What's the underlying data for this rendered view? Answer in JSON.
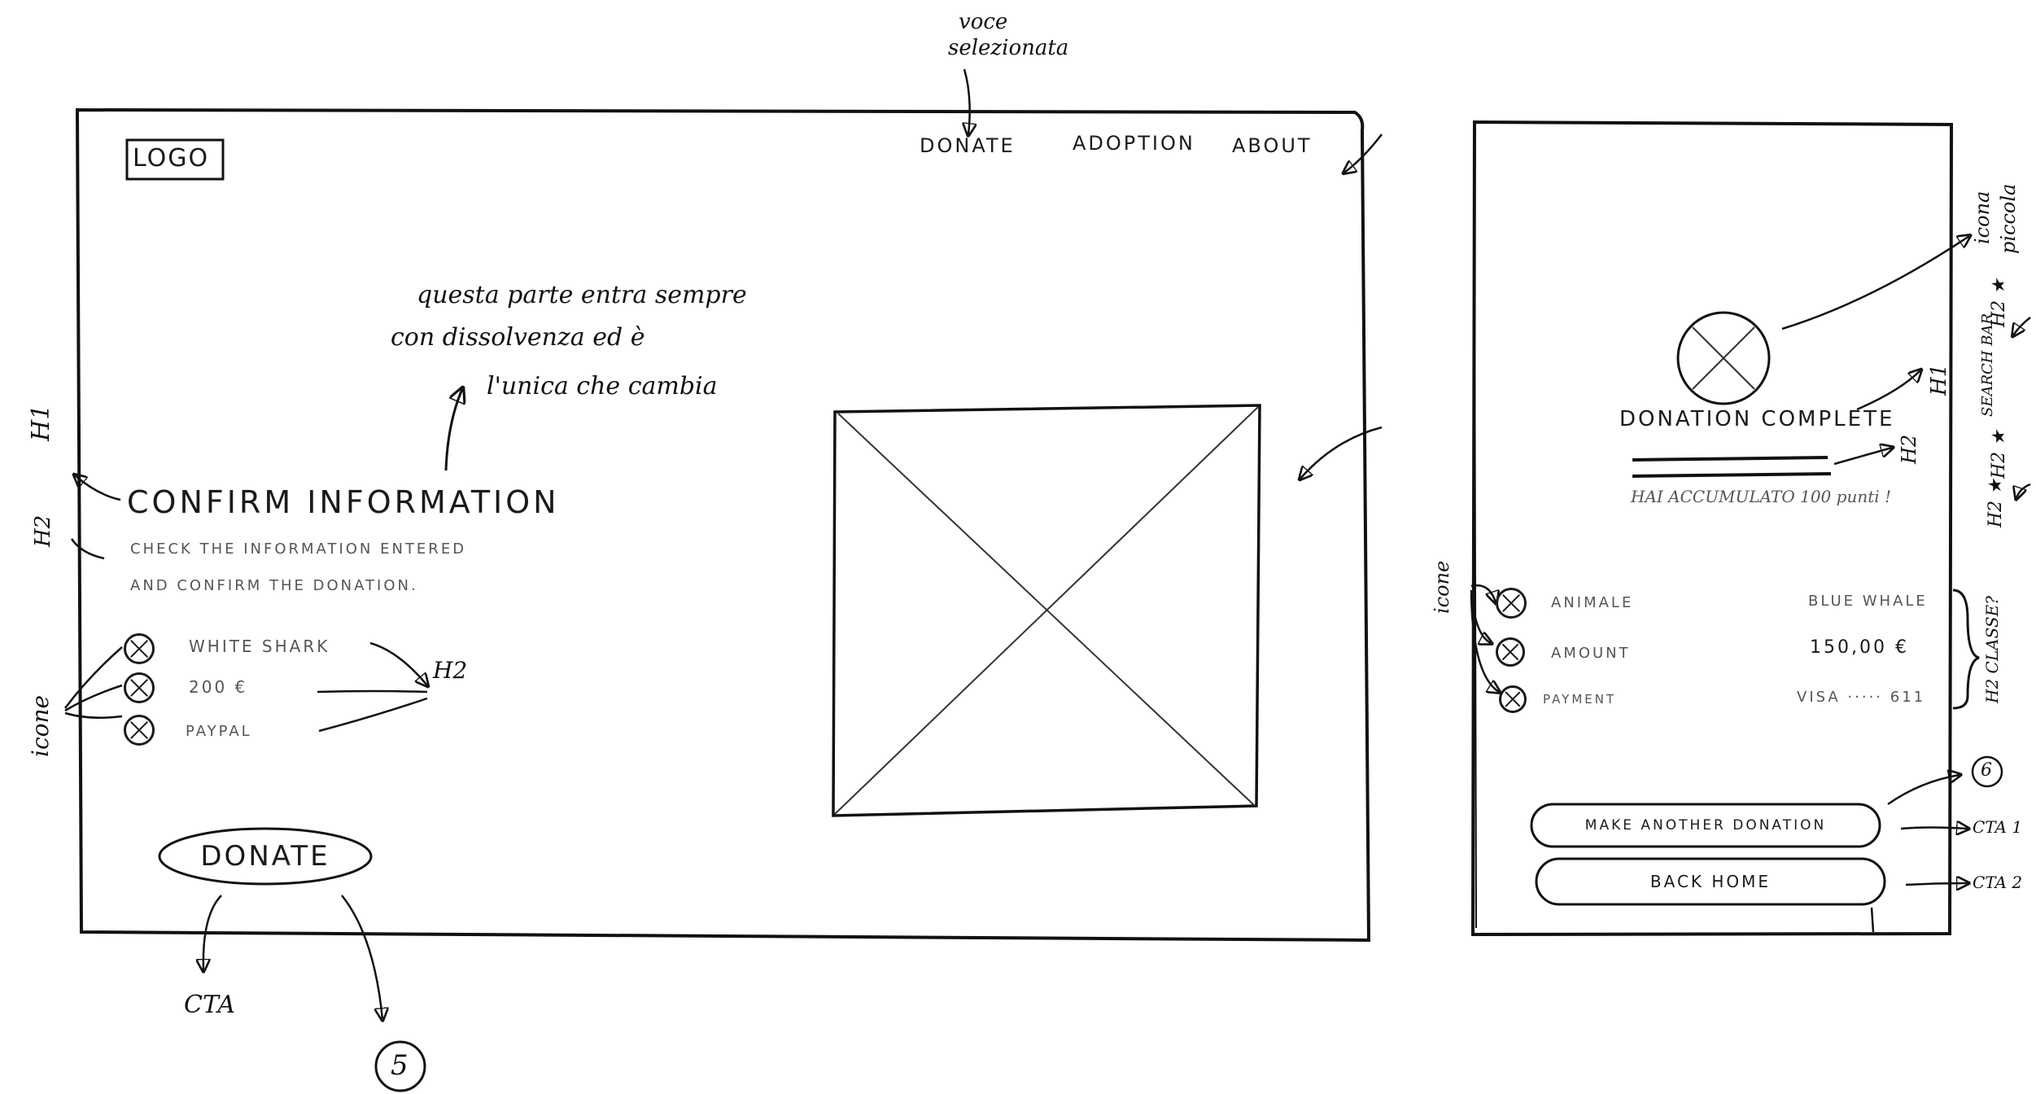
{
  "desktop": {
    "logo": "LOGO",
    "nav": [
      "DONATE",
      "ADOPTION",
      "ABOUT"
    ],
    "h1": "CONFIRM INFORMATION",
    "h2_line1": "CHECK THE INFORMATION ENTERED",
    "h2_line2": "AND CONFIRM THE DONATION.",
    "summary": [
      "WHITE SHARK",
      "200 €",
      "PAYPAL"
    ],
    "cta_label": "DONATE"
  },
  "mobile": {
    "title": "DONATION COMPLETE",
    "points_text": "HAI ACCUMULATO 100 punti !",
    "rows": [
      {
        "label": "ANIMALE",
        "value": "BLUE WHALE"
      },
      {
        "label": "AMOUNT",
        "value": "150,00 €"
      },
      {
        "label": "PAYMENT",
        "value": "VISA ····· 611"
      }
    ],
    "cta1_label": "MAKE ANOTHER DONATION",
    "cta2_label": "BACK HOME"
  },
  "annotations": {
    "voce_selezionata_1": "voce",
    "voce_selezionata_2": "selezionata",
    "note_line1": "questa parte entra sempre",
    "note_line2": "con dissolvenza ed è",
    "note_line3": "l'unica che cambia",
    "h1_tag": "H1",
    "h2_tag": "H2",
    "icone_tag": "icone",
    "h2_right_tag": "H2",
    "cta_tag": "CTA",
    "step5": "5",
    "icona_piccola_1": "icona",
    "icona_piccola_2": "piccola",
    "m_h1_tag": "H1",
    "m_h2_tag": "H2",
    "m_icone_tag": "icone",
    "m_classes_tag": "H2 CLASSE?",
    "step6": "6",
    "cta1_tag": "CTA 1",
    "cta2_tag": "CTA 2",
    "side_h2_a": "H2 ★",
    "side_search": "SEARCH BAR",
    "side_h2_b": "H2 ★",
    "side_h2_c": "H2 ★"
  }
}
